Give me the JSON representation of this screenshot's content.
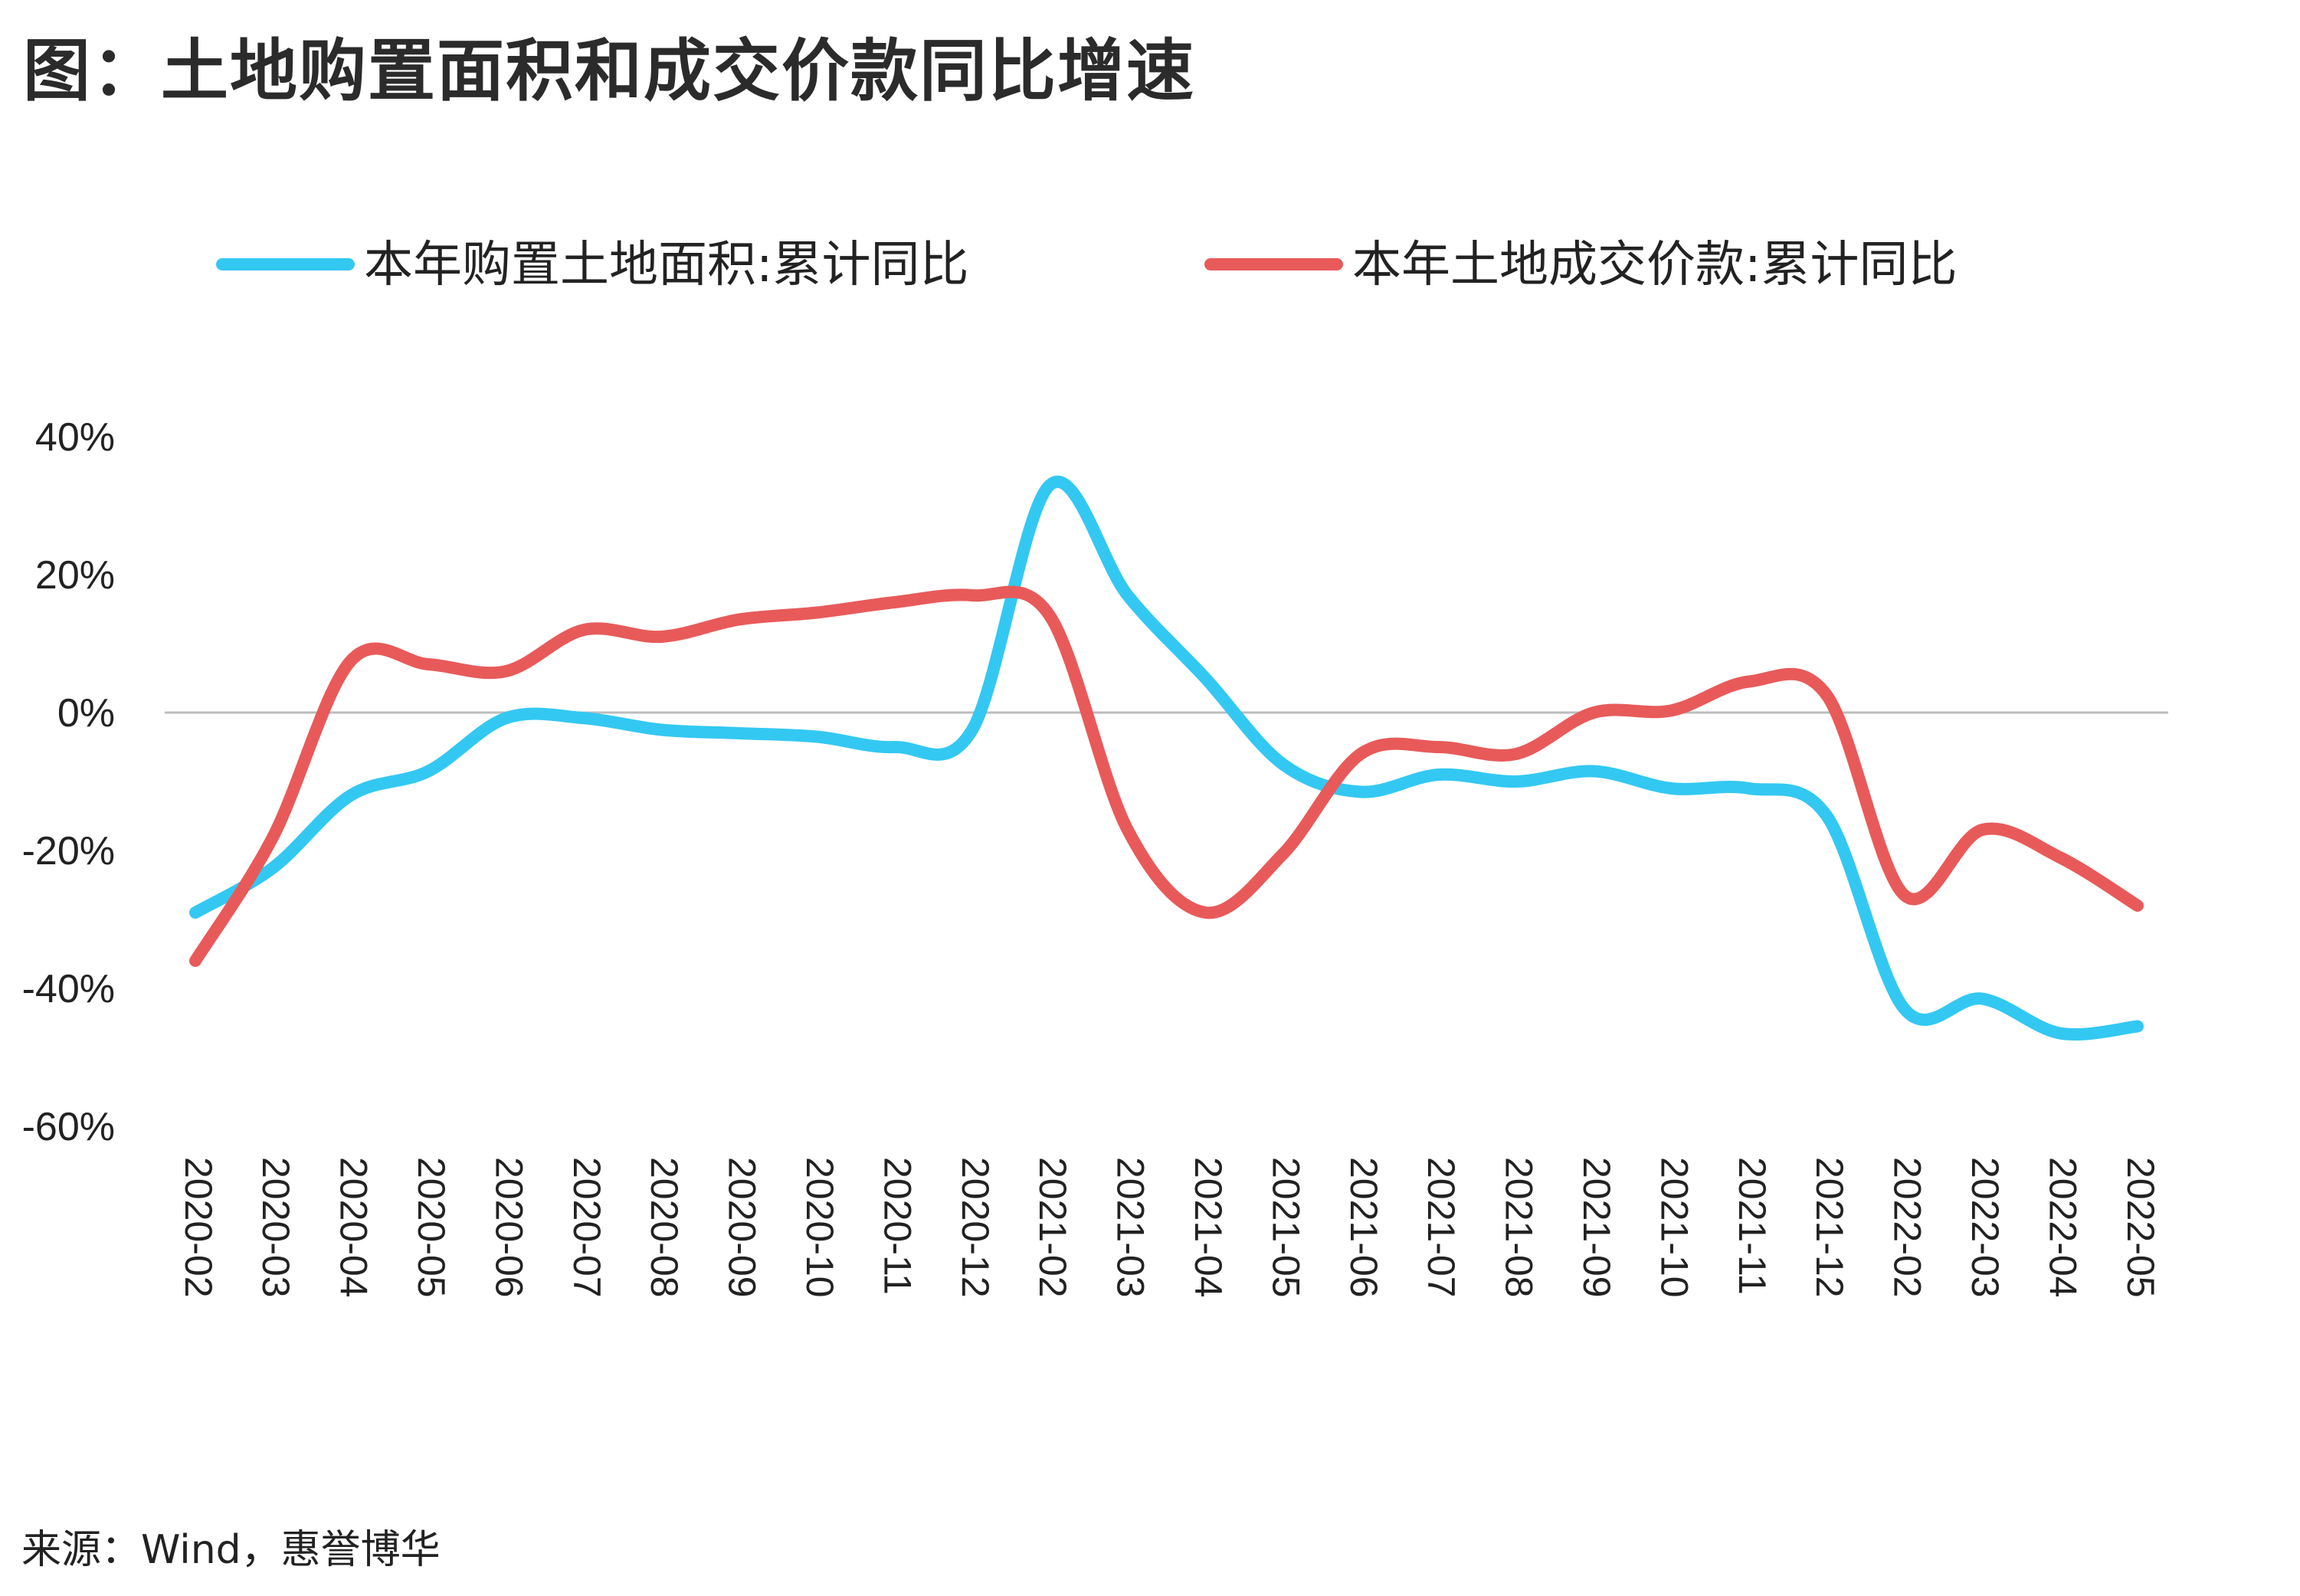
{
  "title": "图：土地购置面积和成交价款同比增速",
  "source": "来源：Wind，惠誉博华",
  "chart_data": {
    "type": "line",
    "categories": [
      "2020-02",
      "2020-03",
      "2020-04",
      "2020-05",
      "2020-06",
      "2020-07",
      "2020-08",
      "2020-09",
      "2020-10",
      "2020-11",
      "2020-12",
      "2021-02",
      "2021-03",
      "2021-04",
      "2021-05",
      "2021-06",
      "2021-07",
      "2021-08",
      "2021-09",
      "2021-10",
      "2021-11",
      "2021-12",
      "2022-02",
      "2022-03",
      "2022-04",
      "2022-05"
    ],
    "series": [
      {
        "name": "本年购置土地面积:累计同比",
        "color": "#33c8f2",
        "values": [
          -29,
          -22.5,
          -12,
          -8.5,
          -0.8,
          -0.8,
          -2.5,
          -3,
          -3.5,
          -5,
          -2.5,
          33,
          17,
          5,
          -7.5,
          -11.5,
          -9,
          -10,
          -8.5,
          -11,
          -11,
          -15,
          -43,
          -41.5,
          -46.5,
          -45.5
        ]
      },
      {
        "name": "本年土地成交价款:累计同比",
        "color": "#e85a5a",
        "values": [
          -36,
          -18,
          7.5,
          7,
          6,
          12,
          11,
          13.5,
          14.5,
          16,
          17,
          14,
          -17,
          -29,
          -20.5,
          -6,
          -5,
          -6,
          0,
          0.3,
          4.5,
          2.5,
          -26.5,
          -17,
          -21,
          -28
        ]
      }
    ],
    "ylim": [
      -60,
      40
    ],
    "yticks": [
      40,
      20,
      0,
      -20,
      -40,
      -60
    ],
    "ytick_labels": [
      "40%",
      "20%",
      "0%",
      "-20%",
      "-40%",
      "-60%"
    ],
    "zero_line": true,
    "grid": false,
    "legend_position": "top"
  }
}
